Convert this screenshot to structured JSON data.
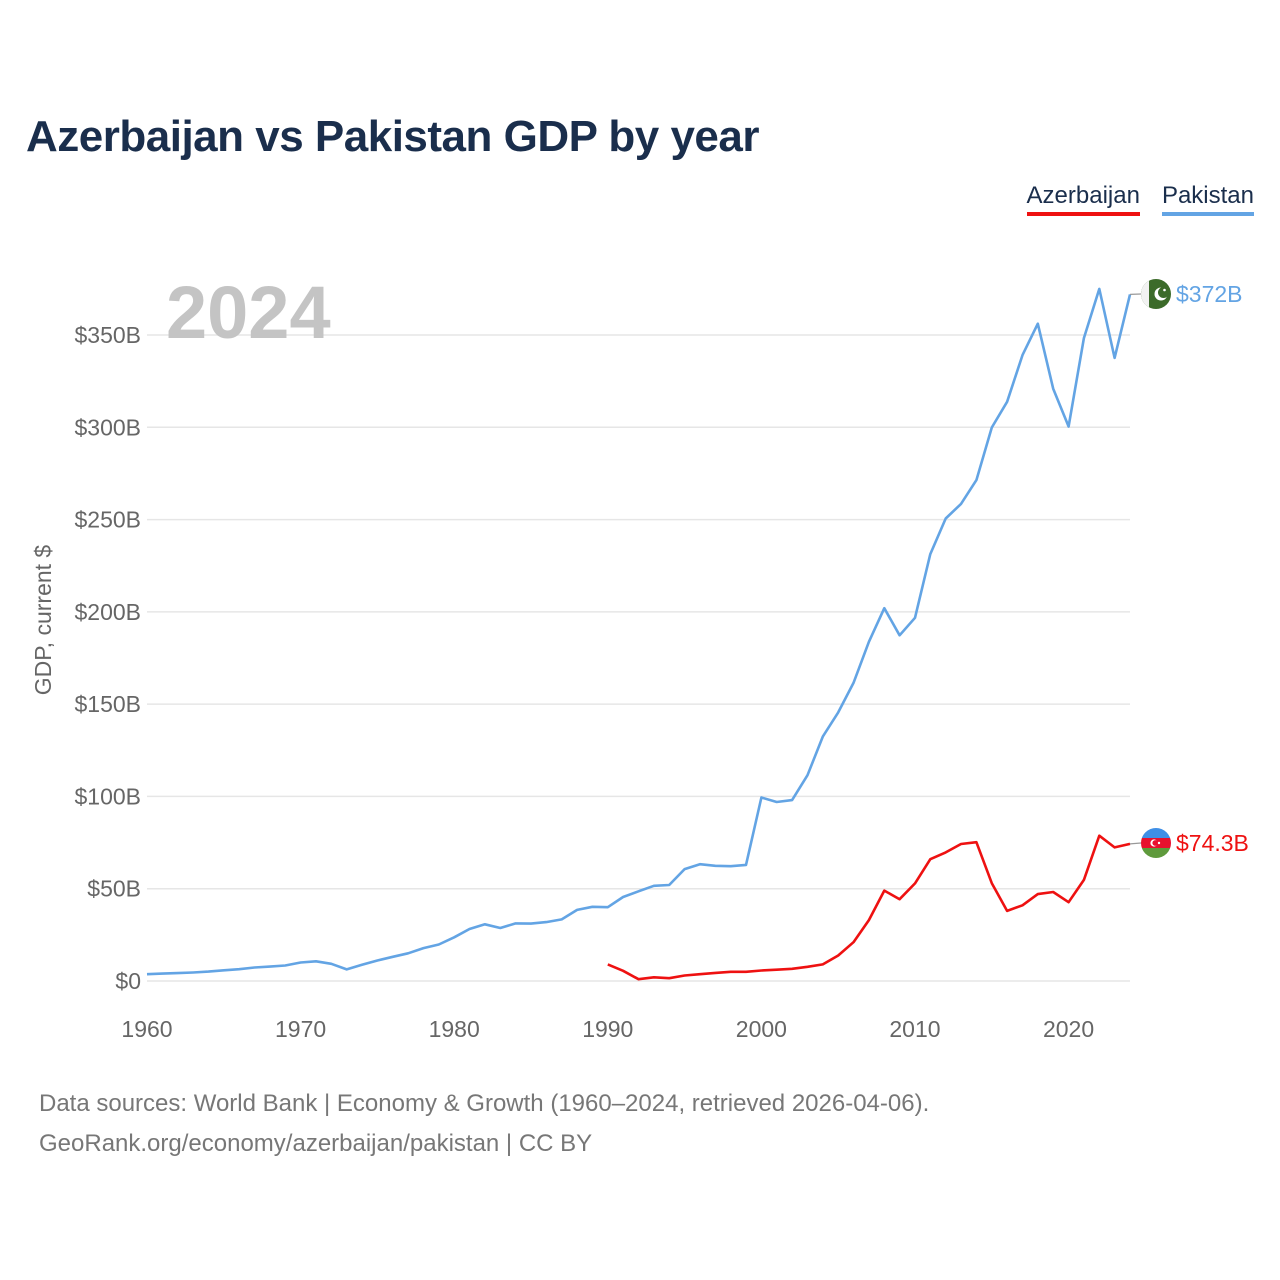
{
  "title": "Azerbaijan vs Pakistan GDP by year",
  "year_label": "2024",
  "footer": {
    "line1": "Data sources: World Bank | Economy & Growth (1960–2024, retrieved 2026-04-06).",
    "line2": "GeoRank.org/economy/azerbaijan/pakistan | CC BY"
  },
  "chart_data": {
    "type": "line",
    "title": "Azerbaijan vs Pakistan GDP by year",
    "xlabel": "",
    "ylabel": "GDP, current $",
    "xlim": [
      1960,
      2024
    ],
    "ylim": [
      0,
      350
    ],
    "x_ticks": [
      1960,
      1970,
      1980,
      1990,
      2000,
      2010,
      2020
    ],
    "x_tick_labels": [
      "1960",
      "1970",
      "1980",
      "1990",
      "2000",
      "2010",
      "2020"
    ],
    "y_ticks": [
      0,
      50,
      100,
      150,
      200,
      250,
      300,
      350
    ],
    "y_tick_labels": [
      "$0",
      "$50B",
      "$100B",
      "$150B",
      "$200B",
      "$250B",
      "$300B",
      "$350B"
    ],
    "legend_position": "top-right",
    "series": [
      {
        "name": "Azerbaijan",
        "color": "#ee1111",
        "end_label": "$74.3B",
        "flag": "azerbaijan",
        "points": [
          [
            1990,
            9
          ],
          [
            1991,
            5.5
          ],
          [
            1992,
            1
          ],
          [
            1993,
            2
          ],
          [
            1994,
            1.5
          ],
          [
            1995,
            3
          ],
          [
            1996,
            3.7
          ],
          [
            1997,
            4.4
          ],
          [
            1998,
            5
          ],
          [
            1999,
            5
          ],
          [
            2000,
            5.7
          ],
          [
            2001,
            6.1
          ],
          [
            2002,
            6.6
          ],
          [
            2003,
            7.7
          ],
          [
            2004,
            9
          ],
          [
            2005,
            13.8
          ],
          [
            2006,
            21
          ],
          [
            2007,
            33
          ],
          [
            2008,
            49
          ],
          [
            2009,
            44.3
          ],
          [
            2010,
            52.9
          ],
          [
            2011,
            66
          ],
          [
            2012,
            69.7
          ],
          [
            2013,
            74.2
          ],
          [
            2014,
            75.2
          ],
          [
            2015,
            53
          ],
          [
            2016,
            38
          ],
          [
            2017,
            41
          ],
          [
            2018,
            47.1
          ],
          [
            2019,
            48.2
          ],
          [
            2020,
            42.7
          ],
          [
            2021,
            54.8
          ],
          [
            2022,
            78.7
          ],
          [
            2023,
            72.4
          ],
          [
            2024,
            74.3
          ]
        ]
      },
      {
        "name": "Pakistan",
        "color": "#63a4e4",
        "end_label": "$372B",
        "flag": "pakistan",
        "points": [
          [
            1960,
            3.7
          ],
          [
            1961,
            4
          ],
          [
            1962,
            4.3
          ],
          [
            1963,
            4.6
          ],
          [
            1964,
            5.1
          ],
          [
            1965,
            5.8
          ],
          [
            1966,
            6.4
          ],
          [
            1967,
            7.3
          ],
          [
            1968,
            7.8
          ],
          [
            1969,
            8.4
          ],
          [
            1970,
            10
          ],
          [
            1971,
            10.7
          ],
          [
            1972,
            9.3
          ],
          [
            1973,
            6.3
          ],
          [
            1974,
            8.8
          ],
          [
            1975,
            11.1
          ],
          [
            1976,
            13.1
          ],
          [
            1977,
            15
          ],
          [
            1978,
            17.8
          ],
          [
            1979,
            19.8
          ],
          [
            1980,
            23.7
          ],
          [
            1981,
            28.2
          ],
          [
            1982,
            30.7
          ],
          [
            1983,
            28.7
          ],
          [
            1984,
            31.2
          ],
          [
            1985,
            31.1
          ],
          [
            1986,
            31.9
          ],
          [
            1987,
            33.4
          ],
          [
            1988,
            38.5
          ],
          [
            1989,
            40.2
          ],
          [
            1990,
            40
          ],
          [
            1991,
            45.5
          ],
          [
            1992,
            48.6
          ],
          [
            1993,
            51.6
          ],
          [
            1994,
            52
          ],
          [
            1995,
            60.6
          ],
          [
            1996,
            63.3
          ],
          [
            1997,
            62.4
          ],
          [
            1998,
            62.2
          ],
          [
            1999,
            62.9
          ],
          [
            2000,
            99.4
          ],
          [
            2001,
            97
          ],
          [
            2002,
            98
          ],
          [
            2003,
            111.5
          ],
          [
            2004,
            132.4
          ],
          [
            2005,
            145.5
          ],
          [
            2006,
            161.5
          ],
          [
            2007,
            183.8
          ],
          [
            2008,
            202
          ],
          [
            2009,
            187.3
          ],
          [
            2010,
            196.8
          ],
          [
            2011,
            231.3
          ],
          [
            2012,
            250.6
          ],
          [
            2013,
            258.5
          ],
          [
            2014,
            271.4
          ],
          [
            2015,
            299.9
          ],
          [
            2016,
            313.8
          ],
          [
            2017,
            339.1
          ],
          [
            2018,
            356.1
          ],
          [
            2019,
            320.9
          ],
          [
            2020,
            300.4
          ],
          [
            2021,
            348.3
          ],
          [
            2022,
            375
          ],
          [
            2023,
            337.6
          ],
          [
            2024,
            372
          ]
        ]
      }
    ]
  }
}
